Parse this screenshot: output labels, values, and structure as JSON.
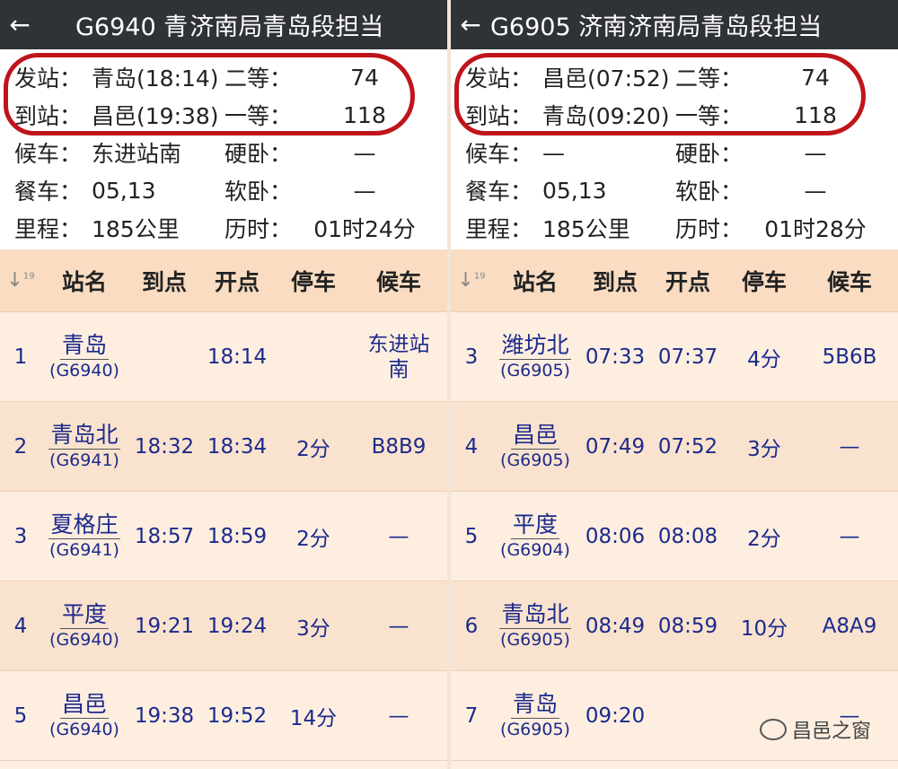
{
  "panels": [
    {
      "title": "G6940 青",
      "title_overlap": "济南局青岛段担当",
      "info": {
        "from_label": "发站：",
        "from": "青岛(18:14)",
        "second_label": "二等：",
        "second": "74",
        "to_label": "到站：",
        "to": "昌邑(19:38)",
        "first_label": "一等：",
        "first": "118",
        "wait_label": "候车：",
        "wait": "东进站南",
        "hard_label": "硬卧：",
        "hard": "—",
        "dining_label": "餐车：",
        "dining": "05,13",
        "soft_label": "软卧：",
        "soft": "—",
        "dist_label": "里程：",
        "dist": "185公里",
        "dur_label": "历时：",
        "dur": "01时24分"
      },
      "columns": [
        "站名",
        "到点",
        "开点",
        "停车",
        "候车"
      ],
      "rows": [
        {
          "no": "1",
          "station": "青岛",
          "train": "(G6940)",
          "arrive": "",
          "depart": "18:14",
          "stop": "",
          "wait": "东进站南"
        },
        {
          "no": "2",
          "station": "青岛北",
          "train": "(G6941)",
          "arrive": "18:32",
          "depart": "18:34",
          "stop": "2分",
          "wait": "B8B9"
        },
        {
          "no": "3",
          "station": "夏格庄",
          "train": "(G6941)",
          "arrive": "18:57",
          "depart": "18:59",
          "stop": "2分",
          "wait": "—"
        },
        {
          "no": "4",
          "station": "平度",
          "train": "(G6940)",
          "arrive": "19:21",
          "depart": "19:24",
          "stop": "3分",
          "wait": "—"
        },
        {
          "no": "5",
          "station": "昌邑",
          "train": "(G6940)",
          "arrive": "19:38",
          "depart": "19:52",
          "stop": "14分",
          "wait": "—"
        }
      ]
    },
    {
      "title": "G6905 济南东",
      "title_overlap": "济南局青岛段担当",
      "info": {
        "from_label": "发站：",
        "from": "昌邑(07:52)",
        "second_label": "二等：",
        "second": "74",
        "to_label": "到站：",
        "to": "青岛(09:20)",
        "first_label": "一等：",
        "first": "118",
        "wait_label": "候车：",
        "wait": "—",
        "hard_label": "硬卧：",
        "hard": "—",
        "dining_label": "餐车：",
        "dining": "05,13",
        "soft_label": "软卧：",
        "soft": "—",
        "dist_label": "里程：",
        "dist": "185公里",
        "dur_label": "历时：",
        "dur": "01时28分"
      },
      "columns": [
        "站名",
        "到点",
        "开点",
        "停车",
        "候车"
      ],
      "rows": [
        {
          "no": "3",
          "station": "潍坊北",
          "train": "(G6905)",
          "arrive": "07:33",
          "depart": "07:37",
          "stop": "4分",
          "wait": "5B6B"
        },
        {
          "no": "4",
          "station": "昌邑",
          "train": "(G6905)",
          "arrive": "07:49",
          "depart": "07:52",
          "stop": "3分",
          "wait": "—"
        },
        {
          "no": "5",
          "station": "平度",
          "train": "(G6904)",
          "arrive": "08:06",
          "depart": "08:08",
          "stop": "2分",
          "wait": "—"
        },
        {
          "no": "6",
          "station": "青岛北",
          "train": "(G6905)",
          "arrive": "08:49",
          "depart": "08:59",
          "stop": "10分",
          "wait": "A8A9"
        },
        {
          "no": "7",
          "station": "青岛",
          "train": "(G6905)",
          "arrive": "09:20",
          "depart": "",
          "stop": "",
          "wait": "—"
        }
      ]
    }
  ],
  "sort_icon": "↓1-9",
  "watermark": "昌邑之窗",
  "colors": {
    "topbar": "#2f3237",
    "highlight_circle": "#c0141b",
    "table_text": "#1c2a8c",
    "table_header": "#f9dcc2"
  }
}
